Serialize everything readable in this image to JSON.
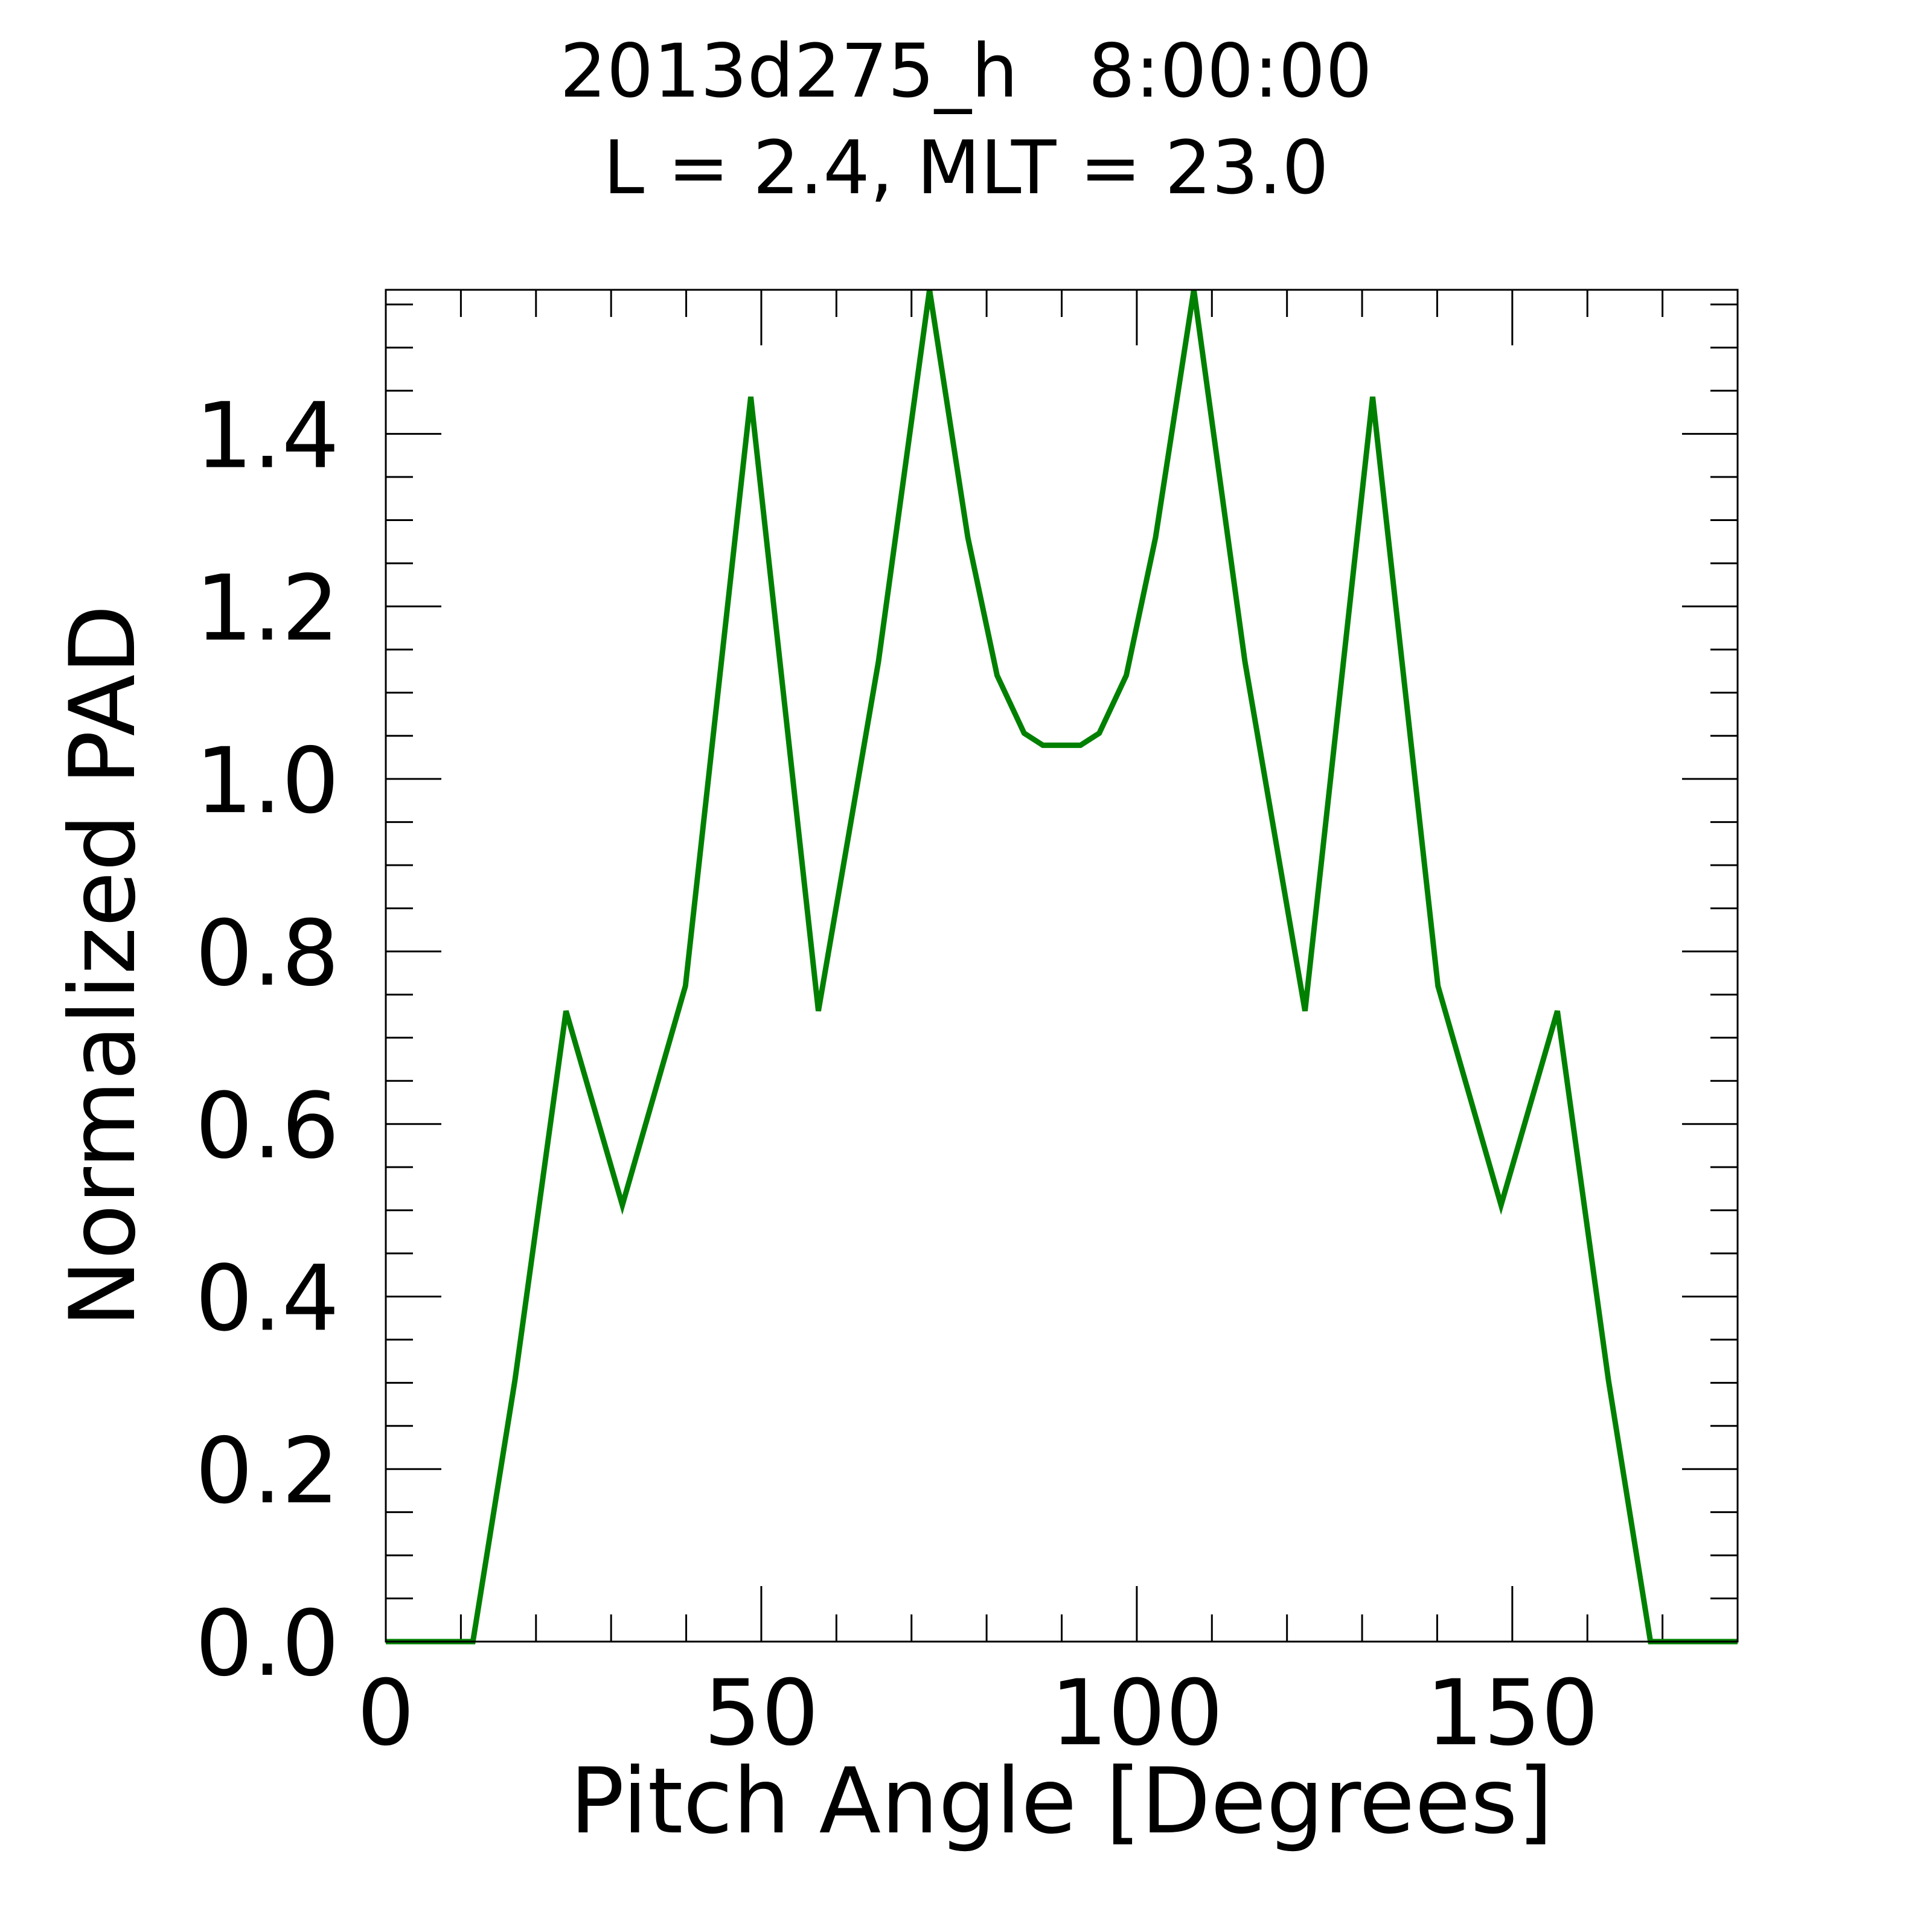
{
  "chart_data": {
    "type": "line",
    "title_line1": "2013d275_h   8:00:00",
    "title_line2": "L = 2.4, MLT = 23.0",
    "xlabel": "Pitch Angle [Degrees]",
    "ylabel": "Normalized PAD",
    "xlim": [
      0,
      180
    ],
    "ylim": [
      0,
      1.567
    ],
    "xticks": [
      0,
      50,
      100,
      150
    ],
    "xtick_labels": [
      "0",
      "50",
      "100",
      "150"
    ],
    "yticks": [
      0,
      0.2,
      0.4,
      0.6,
      0.8,
      1.0,
      1.2,
      1.4
    ],
    "ytick_labels": [
      "0.0",
      "0.2",
      "0.4",
      "0.6",
      "0.8",
      "1.0",
      "1.2",
      "1.4"
    ],
    "grid": false,
    "series": [
      {
        "name": "PAD",
        "color": "#008000",
        "x": [
          0,
          11.6,
          17.2,
          24.0,
          31.5,
          39.9,
          48.6,
          57.6,
          65.6,
          72.4,
          77.5,
          81.4,
          85.0,
          87.5,
          92.5,
          95.0,
          98.6,
          102.5,
          107.6,
          114.4,
          122.4,
          131.4,
          140.1,
          148.5,
          156.0,
          162.8,
          168.4,
          180
        ],
        "y": [
          0,
          0,
          0.303,
          0.731,
          0.506,
          0.76,
          1.443,
          0.731,
          1.136,
          1.567,
          1.28,
          1.12,
          1.053,
          1.039,
          1.039,
          1.053,
          1.12,
          1.28,
          1.567,
          1.136,
          0.731,
          1.443,
          0.76,
          0.506,
          0.731,
          0.303,
          0,
          0
        ]
      }
    ]
  }
}
